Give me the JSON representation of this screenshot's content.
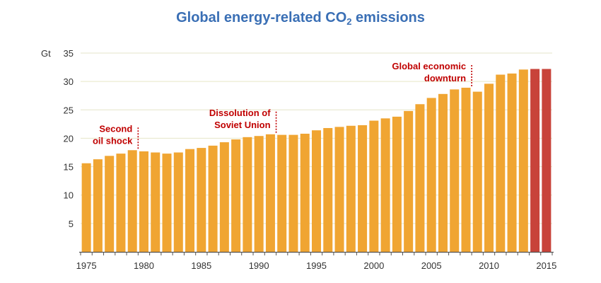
{
  "chart_data": {
    "type": "bar",
    "title": "Global energy-related CO",
    "title_subscript": "2",
    "title_suffix": " emissions",
    "ylabel_unit": "Gt",
    "ylim": [
      0,
      35
    ],
    "yticks": [
      5,
      10,
      15,
      20,
      25,
      30,
      35
    ],
    "xticks": [
      1975,
      1980,
      1985,
      1990,
      1995,
      2000,
      2005,
      2010,
      2015
    ],
    "grid": true,
    "categories": [
      1975,
      1976,
      1977,
      1978,
      1979,
      1980,
      1981,
      1982,
      1983,
      1984,
      1985,
      1986,
      1987,
      1988,
      1989,
      1990,
      1991,
      1992,
      1993,
      1994,
      1995,
      1996,
      1997,
      1998,
      1999,
      2000,
      2001,
      2002,
      2003,
      2004,
      2005,
      2006,
      2007,
      2008,
      2009,
      2010,
      2011,
      2012,
      2013,
      2014,
      2015
    ],
    "values": [
      15.6,
      16.3,
      16.9,
      17.3,
      17.9,
      17.7,
      17.5,
      17.3,
      17.5,
      18.1,
      18.3,
      18.7,
      19.3,
      19.8,
      20.2,
      20.4,
      20.7,
      20.6,
      20.6,
      20.8,
      21.4,
      21.8,
      22.0,
      22.2,
      22.3,
      23.1,
      23.5,
      23.8,
      24.8,
      26.0,
      27.1,
      27.8,
      28.6,
      28.9,
      28.2,
      29.6,
      31.2,
      31.4,
      32.1,
      32.2,
      32.2
    ],
    "colors": {
      "default": "#f0a532",
      "highlight": "#c8433a",
      "grid": "#e6e6c8",
      "axis": "#555555"
    },
    "highlight_categories": [
      2014,
      2015
    ],
    "annotations": [
      {
        "lines": [
          "Second",
          "oil shock"
        ],
        "year": 1979
      },
      {
        "lines": [
          "Dissolution of",
          "Soviet Union"
        ],
        "year": 1991
      },
      {
        "lines": [
          "Global economic",
          "downturn"
        ],
        "year": 2008
      }
    ]
  }
}
